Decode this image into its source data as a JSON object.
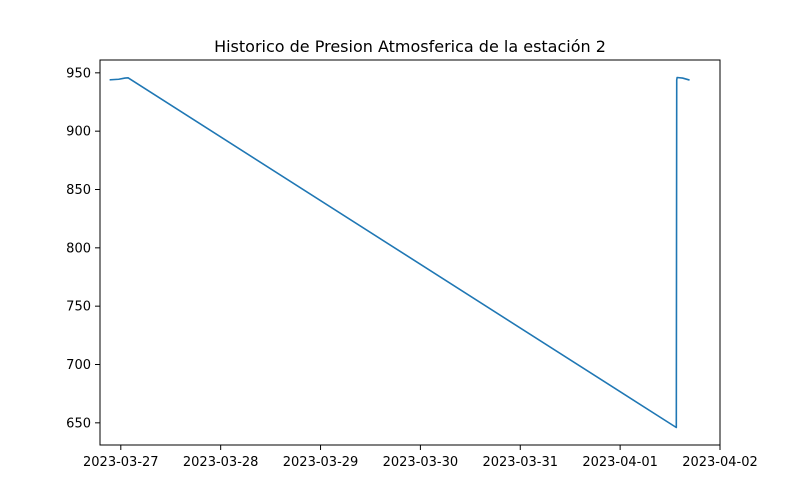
{
  "chart_data": {
    "type": "line",
    "title": "Historico de Presion Atmosferica de la estación 2",
    "xlabel": "",
    "ylabel": "",
    "x_ticks": [
      "2023-03-27",
      "2023-03-28",
      "2023-03-29",
      "2023-03-30",
      "2023-03-31",
      "2023-04-01",
      "2023-04-02"
    ],
    "y_ticks": [
      "650",
      "700",
      "750",
      "800",
      "850",
      "900",
      "950"
    ],
    "xlim": [
      "2023-03-26T19:00",
      "2023-04-02T00:00"
    ],
    "ylim": [
      631,
      961
    ],
    "grid": false,
    "legend": "none",
    "series": [
      {
        "color": "#1f77b4",
        "x": [
          "2023-03-26T21:30",
          "2023-03-26T23:30",
          "2023-03-27T01:00",
          "2023-03-27T01:45",
          "2023-03-27T02:30",
          "2023-04-01T13:30",
          "2023-04-01T13:36",
          "2023-04-01T13:42",
          "2023-04-01T15:00",
          "2023-04-01T16:30"
        ],
        "y": [
          944,
          944.5,
          945.5,
          945.7,
          944,
          646,
          944,
          946,
          945.5,
          944
        ]
      }
    ]
  }
}
